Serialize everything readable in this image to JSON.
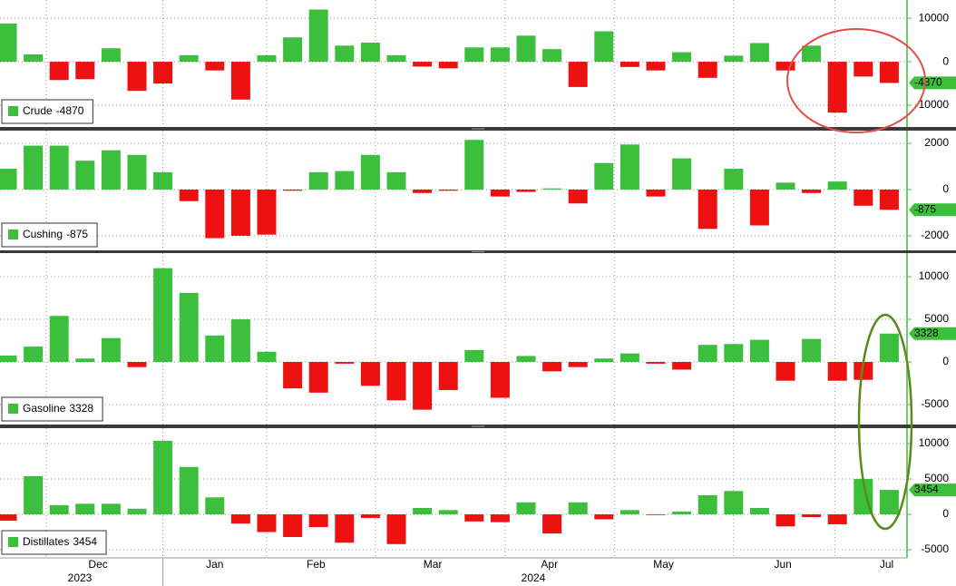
{
  "chart_data": [
    {
      "type": "bar",
      "name": "Crude",
      "positive_color": "#3cbf3c",
      "negative_color": "#ee1111",
      "values": [
        8800,
        1700,
        -4200,
        -4000,
        3100,
        -6700,
        -5000,
        1500,
        -2000,
        -8700,
        1500,
        5600,
        12000,
        3700,
        4400,
        1500,
        -1100,
        -1500,
        3300,
        3300,
        6000,
        2900,
        -5800,
        7000,
        -1200,
        -2000,
        2200,
        -3700,
        1400,
        4300,
        -2000,
        3700,
        -11700,
        -3400,
        -4870
      ],
      "ylim": [
        -15000,
        14200
      ],
      "yticks": [
        -10000,
        0,
        10000
      ],
      "grid": true
    },
    {
      "type": "bar",
      "name": "Cushing",
      "positive_color": "#3cbf3c",
      "negative_color": "#ee1111",
      "values": [
        900,
        1900,
        1900,
        1250,
        1700,
        1500,
        750,
        -500,
        -2100,
        -2000,
        -1950,
        -50,
        750,
        800,
        1500,
        750,
        -150,
        -50,
        2150,
        -300,
        -100,
        50,
        -600,
        1150,
        1950,
        -300,
        1350,
        -1700,
        900,
        -1550,
        300,
        -150,
        350,
        -700,
        -875
      ],
      "ylim": [
        -2630,
        2550
      ],
      "yticks": [
        -2000,
        0,
        2000
      ],
      "grid": true
    },
    {
      "type": "bar",
      "name": "Gasoline",
      "positive_color": "#3cbf3c",
      "negative_color": "#ee1111",
      "values": [
        750,
        1800,
        5400,
        400,
        2800,
        -600,
        11000,
        8100,
        3100,
        5000,
        1200,
        -3100,
        -3600,
        -200,
        -2800,
        -4500,
        -5600,
        -3300,
        1400,
        -4200,
        700,
        -1100,
        -600,
        400,
        1000,
        -200,
        -900,
        2000,
        2100,
        2600,
        -2200,
        2700,
        -2200,
        -2100,
        3328
      ],
      "ylim": [
        -7340,
        12770
      ],
      "yticks": [
        -5000,
        0,
        5000,
        10000
      ],
      "grid": true
    },
    {
      "type": "bar",
      "name": "Distillates",
      "positive_color": "#3cbf3c",
      "negative_color": "#ee1111",
      "values": [
        -900,
        5400,
        1300,
        1500,
        1500,
        800,
        10400,
        6700,
        2400,
        -1300,
        -2500,
        -3200,
        -1800,
        -4000,
        -500,
        -4200,
        900,
        600,
        -1000,
        -1100,
        1700,
        -2700,
        1700,
        -700,
        600,
        -100,
        400,
        2700,
        3300,
        900,
        -1700,
        -400,
        -1400,
        5000,
        3454
      ],
      "ylim": [
        -6150,
        12180
      ],
      "yticks": [
        -5000,
        0,
        5000,
        10000
      ],
      "grid": true
    }
  ],
  "x_axis": {
    "months": [
      "Dec",
      "Jan",
      "Feb",
      "Mar",
      "Apr",
      "May",
      "Jun",
      "Jul"
    ],
    "years": [
      "2023",
      "2024"
    ]
  }
}
